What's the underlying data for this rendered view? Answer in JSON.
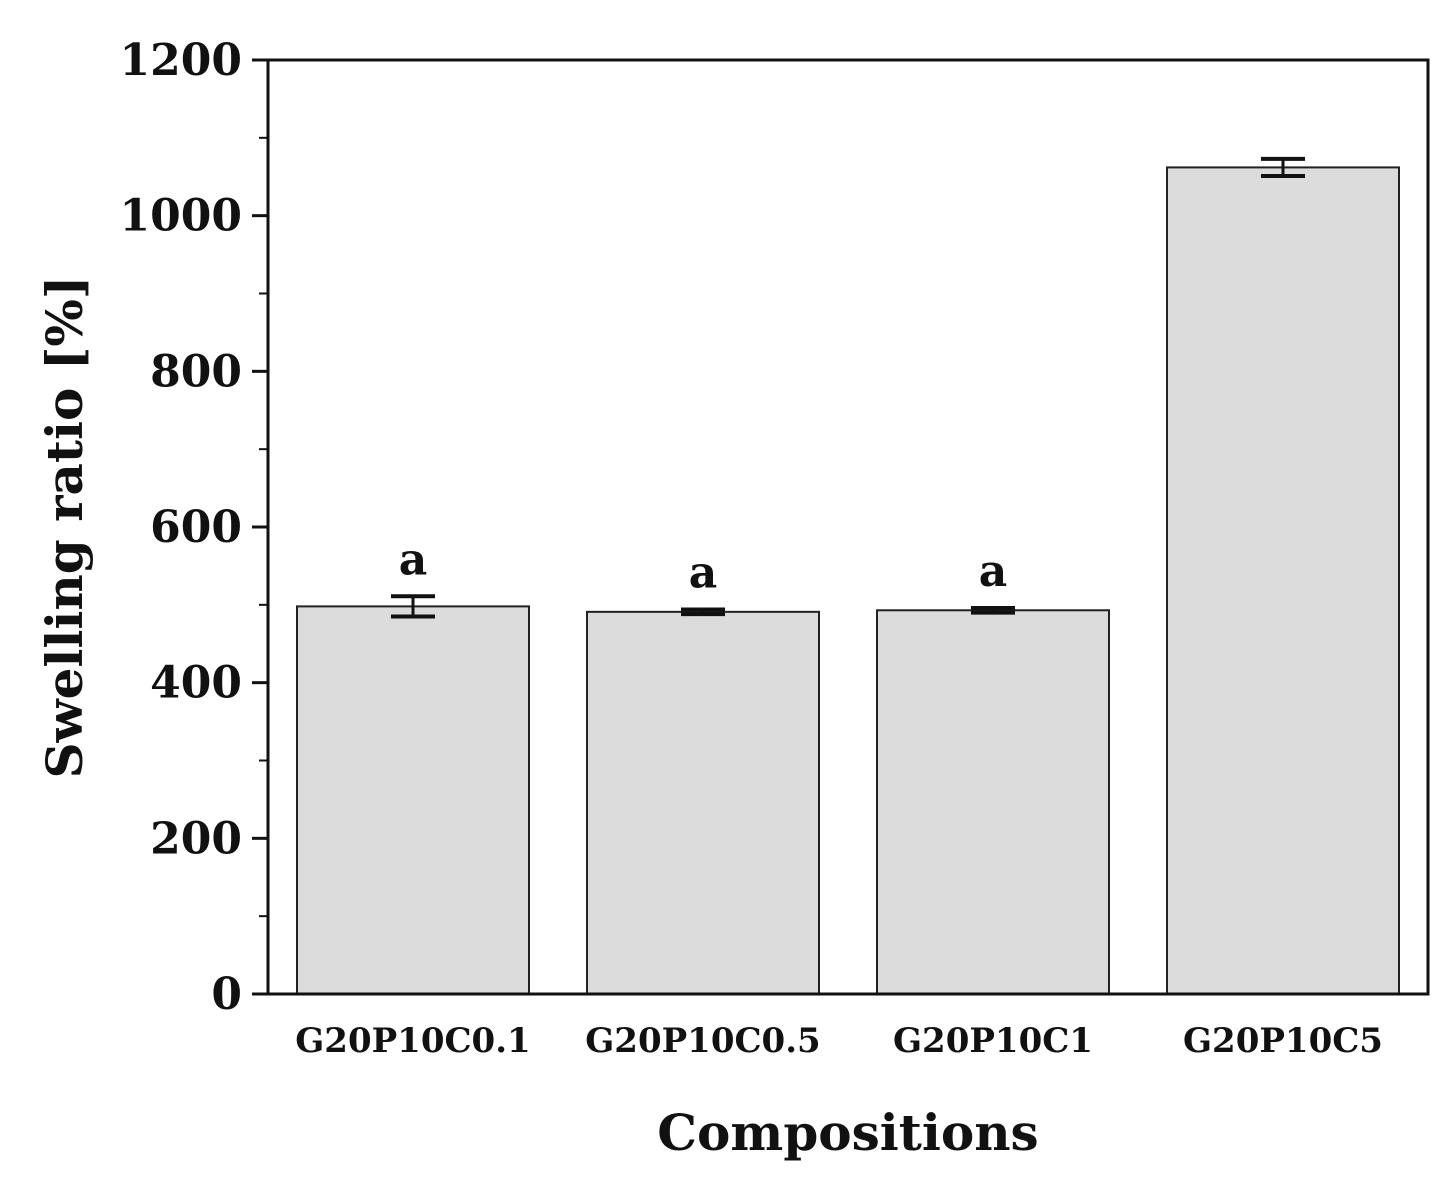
{
  "chart_data": {
    "type": "bar",
    "categories": [
      "G20P10C0.1",
      "G20P10C0.5",
      "G20P10C1",
      "G20P10C5"
    ],
    "values": [
      498,
      491,
      493,
      1062
    ],
    "errors": [
      13,
      3,
      3,
      11
    ],
    "significance_labels": [
      "a",
      "a",
      "a",
      ""
    ],
    "xlabel": "Compositions",
    "ylabel": "Swelling ratio [%]",
    "ylim": [
      0,
      1200
    ],
    "yticks": [
      0,
      200,
      400,
      600,
      800,
      1000,
      1200
    ],
    "y_minor_step": 100,
    "grid": false,
    "bar_color": "#dcdcdc",
    "bar_edge_color": "#222222"
  }
}
